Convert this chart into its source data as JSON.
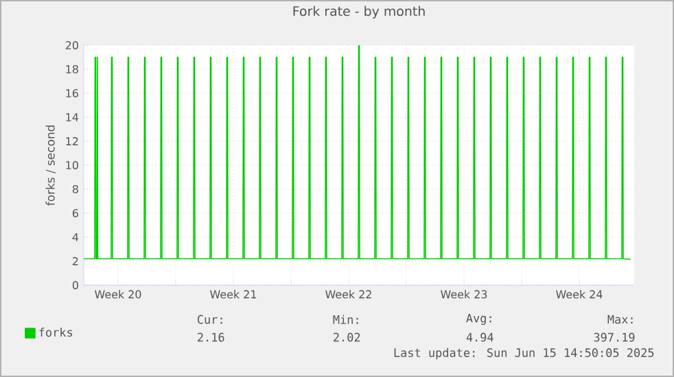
{
  "chart_data": {
    "type": "line",
    "title": "Fork rate - by month",
    "ylabel": "forks / second",
    "xlim": [
      "2025-05-13T10:00",
      "2025-06-15T20:00"
    ],
    "ylim": [
      0,
      20
    ],
    "yticks": [
      0,
      2,
      4,
      6,
      8,
      10,
      12,
      14,
      16,
      18,
      20
    ],
    "xticks": [
      {
        "value": "2025-05-15T12:00",
        "label": "Week 20"
      },
      {
        "value": "2025-05-19T00:00",
        "label": null
      },
      {
        "value": "2025-05-22T12:00",
        "label": "Week 21"
      },
      {
        "value": "2025-05-26T00:00",
        "label": null
      },
      {
        "value": "2025-05-29T12:00",
        "label": "Week 22"
      },
      {
        "value": "2025-06-02T00:00",
        "label": null
      },
      {
        "value": "2025-06-05T12:00",
        "label": "Week 23"
      },
      {
        "value": "2025-06-09T00:00",
        "label": null
      },
      {
        "value": "2025-06-12T12:00",
        "label": "Week 24"
      }
    ],
    "grid": true,
    "legend": "bottom left",
    "line_style": "solid",
    "series": [
      {
        "name": "forks",
        "color": "#00cc00",
        "x": [
          "2025-05-13T10:00",
          "2025-05-14T02:00",
          "2025-05-14T02:30",
          "2025-05-14T03:30",
          "2025-05-14T04:00",
          "2025-05-14T05:30",
          "2025-05-14T06:00",
          "2025-05-14T06:30",
          "2025-05-15T02:00",
          "2025-05-15T02:30",
          "2025-05-15T03:30",
          "2025-05-15T04:00",
          "2025-05-16T02:00",
          "2025-05-16T02:30",
          "2025-05-16T03:30",
          "2025-05-16T04:00",
          "2025-05-17T02:00",
          "2025-05-17T02:30",
          "2025-05-17T03:30",
          "2025-05-17T04:00",
          "2025-05-18T02:00",
          "2025-05-18T02:30",
          "2025-05-18T03:30",
          "2025-05-18T04:00",
          "2025-05-19T02:00",
          "2025-05-19T02:30",
          "2025-05-19T03:30",
          "2025-05-19T04:00",
          "2025-05-20T02:00",
          "2025-05-20T02:30",
          "2025-05-20T03:30",
          "2025-05-20T04:00",
          "2025-05-21T02:00",
          "2025-05-21T02:30",
          "2025-05-21T03:30",
          "2025-05-21T04:00",
          "2025-05-22T02:00",
          "2025-05-22T02:30",
          "2025-05-22T03:30",
          "2025-05-22T04:00",
          "2025-05-23T02:00",
          "2025-05-23T02:30",
          "2025-05-23T03:30",
          "2025-05-23T04:00",
          "2025-05-24T02:00",
          "2025-05-24T02:30",
          "2025-05-24T03:30",
          "2025-05-24T04:00",
          "2025-05-25T02:00",
          "2025-05-25T02:30",
          "2025-05-25T03:30",
          "2025-05-25T04:00",
          "2025-05-26T02:00",
          "2025-05-26T02:30",
          "2025-05-26T03:30",
          "2025-05-26T04:00",
          "2025-05-27T02:00",
          "2025-05-27T02:30",
          "2025-05-27T03:30",
          "2025-05-27T04:00",
          "2025-05-28T02:00",
          "2025-05-28T02:30",
          "2025-05-28T03:30",
          "2025-05-28T04:00",
          "2025-05-29T02:00",
          "2025-05-29T02:30",
          "2025-05-29T03:30",
          "2025-05-29T04:00",
          "2025-05-30T02:00",
          "2025-05-30T02:30",
          "2025-05-30T03:30",
          "2025-05-30T04:00",
          "2025-05-31T02:00",
          "2025-05-31T02:30",
          "2025-05-31T03:30",
          "2025-05-31T04:00",
          "2025-06-01T02:00",
          "2025-06-01T02:30",
          "2025-06-01T03:30",
          "2025-06-01T04:00",
          "2025-06-02T02:00",
          "2025-06-02T02:30",
          "2025-06-02T03:30",
          "2025-06-02T04:00",
          "2025-06-03T02:00",
          "2025-06-03T02:30",
          "2025-06-03T03:30",
          "2025-06-03T04:00",
          "2025-06-04T02:00",
          "2025-06-04T02:30",
          "2025-06-04T03:30",
          "2025-06-04T04:00",
          "2025-06-05T02:00",
          "2025-06-05T02:30",
          "2025-06-05T03:30",
          "2025-06-05T04:00",
          "2025-06-06T02:00",
          "2025-06-06T02:30",
          "2025-06-06T03:30",
          "2025-06-06T04:00",
          "2025-06-07T02:00",
          "2025-06-07T02:30",
          "2025-06-07T03:30",
          "2025-06-07T04:00",
          "2025-06-08T02:00",
          "2025-06-08T02:30",
          "2025-06-08T03:30",
          "2025-06-08T04:00",
          "2025-06-09T02:00",
          "2025-06-09T02:30",
          "2025-06-09T03:30",
          "2025-06-09T04:00",
          "2025-06-10T02:00",
          "2025-06-10T02:30",
          "2025-06-10T03:30",
          "2025-06-10T04:00",
          "2025-06-11T02:00",
          "2025-06-11T02:30",
          "2025-06-11T03:30",
          "2025-06-11T04:00",
          "2025-06-12T02:00",
          "2025-06-12T02:30",
          "2025-06-12T03:30",
          "2025-06-12T04:00",
          "2025-06-13T02:00",
          "2025-06-13T02:30",
          "2025-06-13T03:30",
          "2025-06-13T04:00",
          "2025-06-14T02:00",
          "2025-06-14T02:30",
          "2025-06-14T03:30",
          "2025-06-14T04:00",
          "2025-06-15T02:00",
          "2025-06-15T02:30",
          "2025-06-15T03:30",
          "2025-06-15T04:00",
          "2025-06-15T14:50"
        ],
        "values": [
          2.2,
          2.2,
          19,
          19,
          2.2,
          2.2,
          19,
          2.2,
          2.2,
          19,
          19,
          2.2,
          2.2,
          19,
          19,
          2.2,
          2.2,
          19,
          19,
          2.2,
          2.2,
          19,
          19,
          2.2,
          2.2,
          19,
          19,
          2.2,
          2.2,
          19,
          19,
          2.2,
          2.2,
          19,
          19,
          2.2,
          2.2,
          19,
          19,
          2.2,
          2.2,
          19,
          19,
          2.2,
          2.2,
          19,
          19,
          2.2,
          2.2,
          19,
          19,
          2.2,
          2.2,
          19,
          19,
          2.2,
          2.2,
          19,
          19,
          2.2,
          2.2,
          19,
          19,
          2.2,
          2.2,
          19,
          19,
          2.2,
          2.2,
          20,
          20,
          2.2,
          2.2,
          19,
          19,
          2.2,
          2.2,
          19,
          19,
          2.2,
          2.2,
          19,
          19,
          2.2,
          2.2,
          19,
          19,
          2.2,
          2.2,
          19,
          19,
          2.2,
          2.2,
          19,
          19,
          2.2,
          2.2,
          19,
          19,
          2.2,
          2.2,
          19,
          19,
          2.2,
          2.2,
          19,
          19,
          2.2,
          2.2,
          19,
          19,
          2.2,
          2.2,
          19,
          19,
          2.2,
          2.2,
          19,
          19,
          2.2,
          2.2,
          19,
          19,
          2.2,
          2.2,
          19,
          19,
          2.2,
          2.2,
          19,
          19,
          2.2,
          2.2,
          19,
          19,
          2.2,
          2.16
        ]
      }
    ],
    "annotations": [
      "Cur:",
      "Min:",
      "Avg:",
      "Max:",
      "2.16",
      "2.02",
      "4.94",
      "397.19",
      "Last update: Sun Jun 15 14:50:05 2025"
    ]
  }
}
